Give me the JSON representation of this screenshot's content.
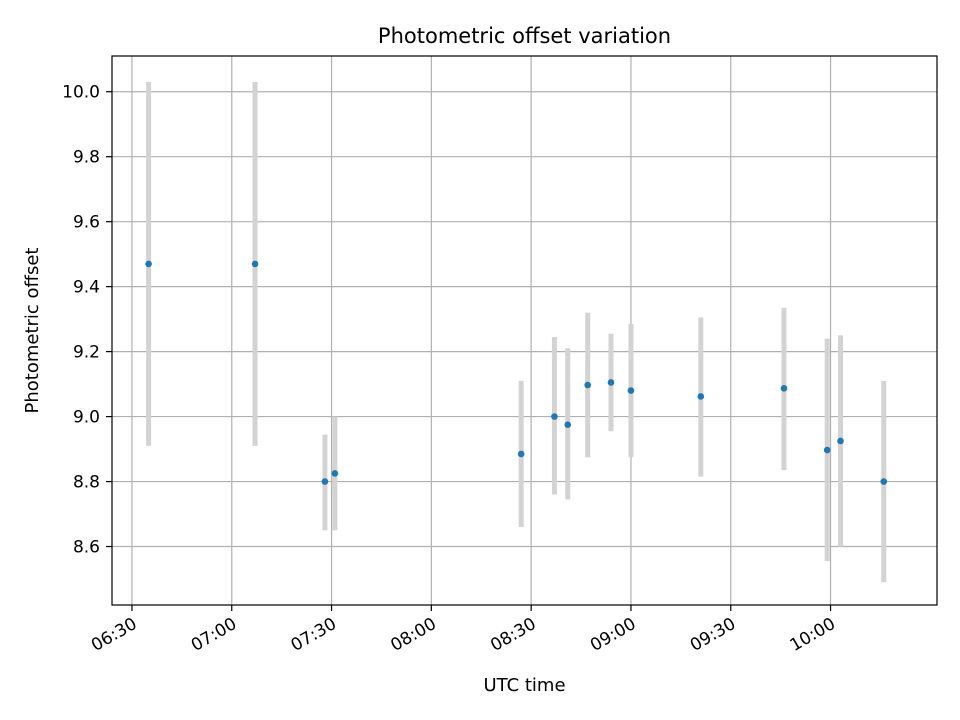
{
  "chart_data": {
    "type": "scatter",
    "title": "Photometric offset variation",
    "xlabel": "UTC time",
    "ylabel": "Photometric offset",
    "xlim": [
      "06:24",
      "10:32"
    ],
    "ylim": [
      8.42,
      10.11
    ],
    "xticks": [
      "06:30",
      "07:00",
      "07:30",
      "08:00",
      "08:30",
      "09:00",
      "09:30",
      "10:00"
    ],
    "yticks": [
      "8.6",
      "8.8",
      "9.0",
      "9.2",
      "9.4",
      "9.6",
      "9.8",
      "10.0"
    ],
    "grid": true,
    "marker_color": "#1f77b4",
    "errorbar_color": "#d3d3d3",
    "points": [
      {
        "time": "06:35",
        "y": 9.47,
        "ylow": 8.91,
        "yhigh": 10.03
      },
      {
        "time": "07:07",
        "y": 9.47,
        "ylow": 8.91,
        "yhigh": 10.03
      },
      {
        "time": "07:28",
        "y": 8.8,
        "ylow": 8.65,
        "yhigh": 8.945
      },
      {
        "time": "07:31",
        "y": 8.825,
        "ylow": 8.65,
        "yhigh": 9.0
      },
      {
        "time": "08:27",
        "y": 8.885,
        "ylow": 8.66,
        "yhigh": 9.11
      },
      {
        "time": "08:37",
        "y": 9.0,
        "ylow": 8.76,
        "yhigh": 9.245
      },
      {
        "time": "08:41",
        "y": 8.975,
        "ylow": 8.745,
        "yhigh": 9.21
      },
      {
        "time": "08:47",
        "y": 9.097,
        "ylow": 8.875,
        "yhigh": 9.32
      },
      {
        "time": "08:54",
        "y": 9.105,
        "ylow": 8.955,
        "yhigh": 9.255
      },
      {
        "time": "09:00",
        "y": 9.08,
        "ylow": 8.875,
        "yhigh": 9.285
      },
      {
        "time": "09:21",
        "y": 9.062,
        "ylow": 8.815,
        "yhigh": 9.305
      },
      {
        "time": "09:46",
        "y": 9.087,
        "ylow": 8.835,
        "yhigh": 9.335
      },
      {
        "time": "09:59",
        "y": 8.897,
        "ylow": 8.555,
        "yhigh": 9.24
      },
      {
        "time": "10:03",
        "y": 8.925,
        "ylow": 8.6,
        "yhigh": 9.25
      },
      {
        "time": "10:16",
        "y": 8.8,
        "ylow": 8.49,
        "yhigh": 9.11
      }
    ]
  }
}
